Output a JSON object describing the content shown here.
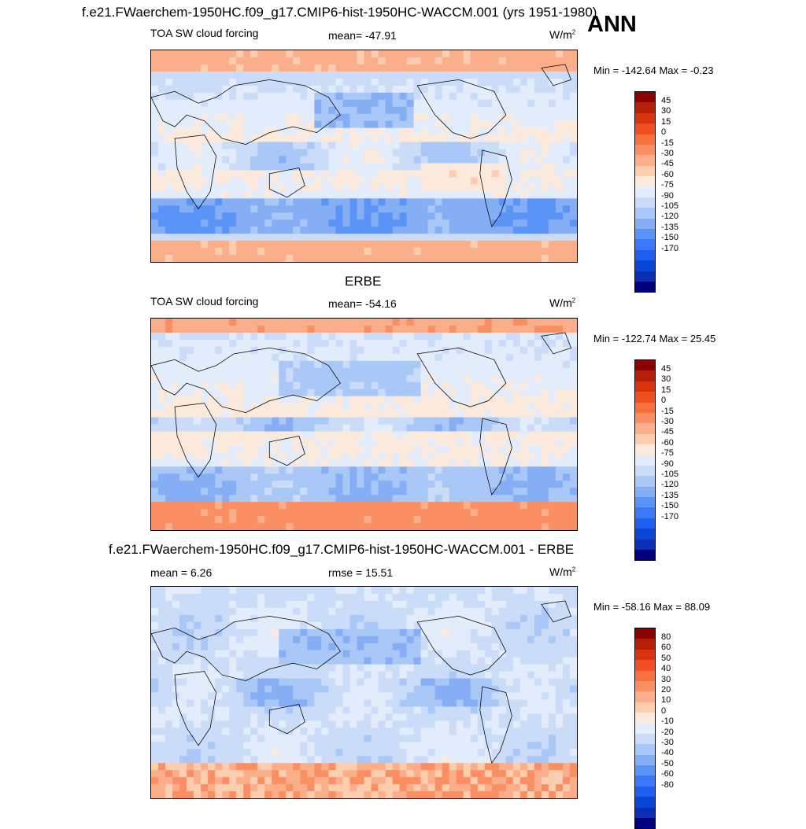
{
  "page": {
    "title": "f.e21.FWaerchem-1950HC.f09_g17.CMIP6-hist-1950HC-WACCM.001 (yrs 1951-1980)",
    "season": "ANN"
  },
  "palette": {
    "colors": [
      "#00007f",
      "#0a2fb5",
      "#0a46d6",
      "#1e5ef0",
      "#3a78f8",
      "#5b94f7",
      "#85aef5",
      "#aac8f7",
      "#cadcf8",
      "#e3ecfa",
      "#fbe9dc",
      "#fdcdb0",
      "#fbae8a",
      "#f98f63",
      "#f5703c",
      "#f04f21",
      "#d9340f",
      "#b51f06",
      "#8b0000"
    ]
  },
  "chart_data": [
    {
      "type": "heatmap",
      "panel_title": "",
      "variable": "TOA SW cloud forcing",
      "stat_left_label": "",
      "stat_center": "mean= -47.91",
      "units_base": "W/m",
      "units_exp": "2",
      "minmax": "Min = -142.64 Max =  -0.23",
      "levels": [
        "45",
        "30",
        "15",
        "0",
        "-15",
        "-30",
        "-45",
        "-60",
        "-75",
        "-90",
        "-105",
        "-120",
        "-135",
        "-150",
        "-170"
      ],
      "field": "model"
    },
    {
      "type": "heatmap",
      "panel_title": "ERBE",
      "variable": "TOA SW cloud forcing",
      "stat_left_label": "",
      "stat_center": "mean= -54.16",
      "units_base": "W/m",
      "units_exp": "2",
      "minmax": "Min = -122.74 Max =  25.45",
      "levels": [
        "45",
        "30",
        "15",
        "0",
        "-15",
        "-30",
        "-45",
        "-60",
        "-75",
        "-90",
        "-105",
        "-120",
        "-135",
        "-150",
        "-170"
      ],
      "field": "obs"
    },
    {
      "type": "heatmap",
      "panel_title": "f.e21.FWaerchem-1950HC.f09_g17.CMIP6-hist-1950HC-WACCM.001 - ERBE",
      "variable": "",
      "stat_left_label": "mean =   6.26",
      "stat_center": "rmse =  15.51",
      "units_base": "W/m",
      "units_exp": "2",
      "minmax": "Min = -58.16 Max =  88.09",
      "levels": [
        "80",
        "60",
        "50",
        "40",
        "30",
        "20",
        "10",
        "0",
        "-10",
        "-20",
        "-30",
        "-40",
        "-50",
        "-60",
        "-80"
      ],
      "field": "diff"
    }
  ]
}
